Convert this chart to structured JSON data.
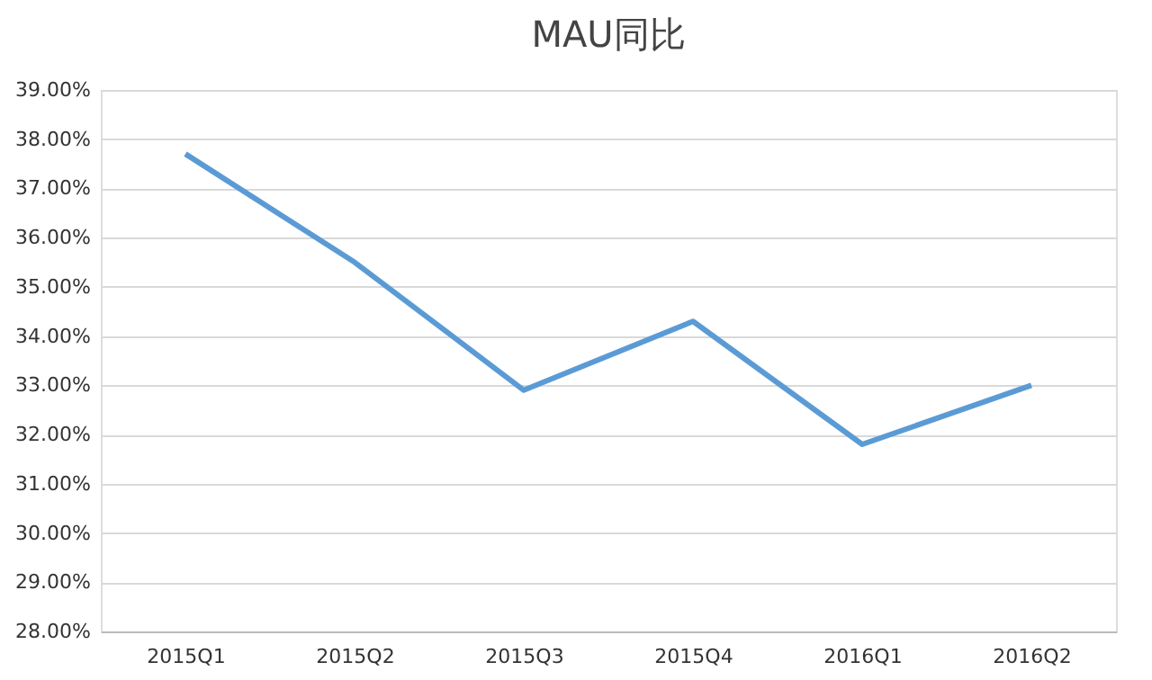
{
  "chart_data": {
    "type": "line",
    "title": "MAU同比",
    "categories": [
      "2015Q1",
      "2015Q2",
      "2015Q3",
      "2015Q4",
      "2016Q1",
      "2016Q2"
    ],
    "series": [
      {
        "color": "#5b9bd5",
        "values": [
          37.7,
          35.5,
          32.9,
          34.3,
          31.8,
          33.0
        ]
      }
    ],
    "ylim": [
      28,
      39
    ],
    "yticks": [
      {
        "value": 28,
        "label": "28.00%"
      },
      {
        "value": 29,
        "label": "29.00%"
      },
      {
        "value": 30,
        "label": "30.00%"
      },
      {
        "value": 31,
        "label": "31.00%"
      },
      {
        "value": 32,
        "label": "32.00%"
      },
      {
        "value": 33,
        "label": "33.00%"
      },
      {
        "value": 34,
        "label": "34.00%"
      },
      {
        "value": 35,
        "label": "35.00%"
      },
      {
        "value": 36,
        "label": "36.00%"
      },
      {
        "value": 37,
        "label": "37.00%"
      },
      {
        "value": 38,
        "label": "38.00%"
      },
      {
        "value": 39,
        "label": "39.00%"
      }
    ],
    "grid": "y",
    "marker": "none",
    "line_style": "solid"
  }
}
